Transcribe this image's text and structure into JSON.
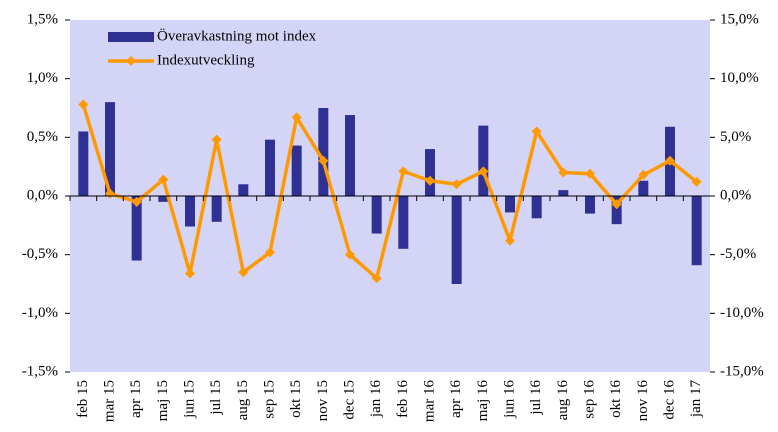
{
  "chart_data": {
    "type": "bar-line",
    "categories": [
      "feb 15",
      "mar 15",
      "apr 15",
      "maj 15",
      "jun 15",
      "jul 15",
      "aug 15",
      "sep 15",
      "okt 15",
      "nov 15",
      "dec 15",
      "jan 16",
      "feb 16",
      "mar 16",
      "apr 16",
      "maj 16",
      "jun 16",
      "jul 16",
      "aug 16",
      "sep 16",
      "okt 16",
      "nov 16",
      "dec 16",
      "jan 17"
    ],
    "series": [
      {
        "name": "Överavkastning mot index",
        "color": "#2e3192",
        "type": "bar",
        "values": [
          0.55,
          0.8,
          -0.55,
          -0.05,
          -0.26,
          -0.22,
          0.1,
          0.48,
          0.43,
          0.75,
          0.69,
          -0.32,
          -0.45,
          0.4,
          -0.75,
          0.6,
          -0.14,
          -0.19,
          0.05,
          -0.15,
          -0.24,
          0.13,
          0.59,
          -0.59
        ]
      },
      {
        "name": "Indexutveckling",
        "color": "#ff9900",
        "type": "line",
        "axis": "y2",
        "values": [
          7.8,
          0.2,
          -0.5,
          1.4,
          -6.6,
          4.8,
          -6.5,
          -4.8,
          6.7,
          3.0,
          -5.0,
          -7.0,
          2.1,
          1.3,
          1.0,
          2.1,
          -3.8,
          5.5,
          2.0,
          1.9,
          -0.7,
          1.8,
          3.0,
          1.2
        ]
      }
    ],
    "ylim": [
      -1.5,
      1.5
    ],
    "yticks": [
      {
        "value": -1.5,
        "label": "-1,5%"
      },
      {
        "value": -1.0,
        "label": "-1,0%"
      },
      {
        "value": -0.5,
        "label": "-0,5%"
      },
      {
        "value": 0,
        "label": "0,0%"
      },
      {
        "value": 0.5,
        "label": "0,5%"
      },
      {
        "value": 1.0,
        "label": "1,0%"
      },
      {
        "value": 1.5,
        "label": "1,5%"
      }
    ],
    "y2lim": [
      -15,
      15
    ],
    "y2ticks": [
      {
        "value": -15,
        "label": "-15,0%"
      },
      {
        "value": -10,
        "label": "-10,0%"
      },
      {
        "value": -5,
        "label": "-5,0%"
      },
      {
        "value": 0,
        "label": "0,0%"
      },
      {
        "value": 5,
        "label": "5,0%"
      },
      {
        "value": 10,
        "label": "10,0%"
      },
      {
        "value": 15,
        "label": "15,0%"
      }
    ],
    "plot_background": "#d4d4f7",
    "legend": "top-left"
  }
}
